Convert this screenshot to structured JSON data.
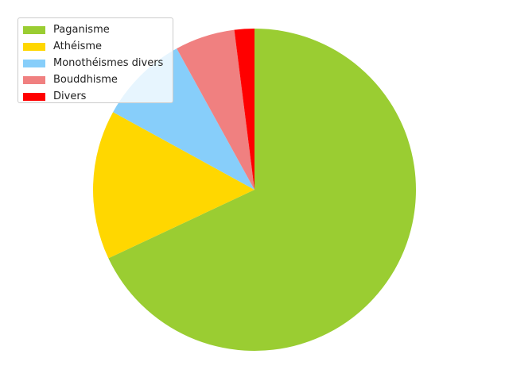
{
  "chart_data": {
    "type": "pie",
    "title": "",
    "labels": [
      "Paganisme",
      "Athéisme",
      "Monothéismes divers",
      "Bouddhisme",
      "Divers"
    ],
    "values": [
      68,
      15,
      9,
      6,
      2
    ],
    "unit": "%",
    "colors": [
      "#9acd32",
      "#ffd700",
      "#87cefa",
      "#f08080",
      "#ff0000"
    ],
    "start_angle_deg": 90,
    "direction": "clockwise",
    "legend_placement": "upper-left"
  }
}
